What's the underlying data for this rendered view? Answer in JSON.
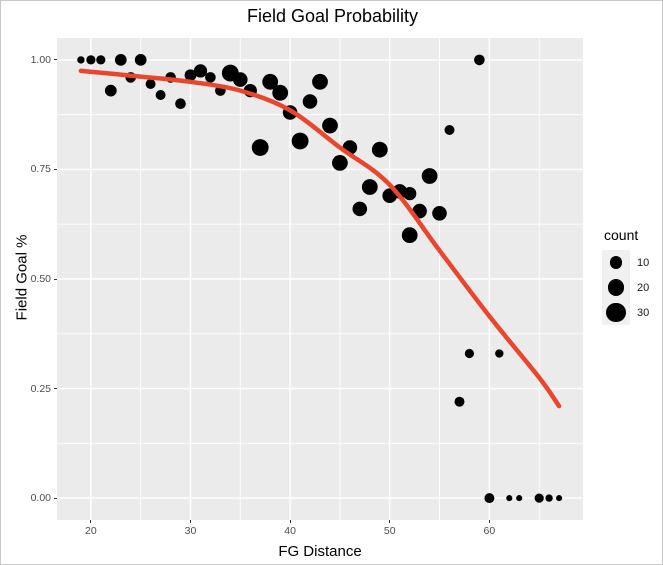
{
  "title": "Field Goal Probability",
  "axes": {
    "x_label": "FG Distance",
    "y_label": "Field Goal %"
  },
  "legend": {
    "title": "count",
    "entries": [
      {
        "label": "10",
        "count": 10
      },
      {
        "label": "20",
        "count": 20
      },
      {
        "label": "30",
        "count": 30
      }
    ]
  },
  "colors": {
    "panel_bg": "#EBEBEB",
    "gridline": "#FFFFFF",
    "curve": "#E8462D",
    "point": "#000000",
    "tick_label": "#4D4D4D",
    "legend_key_bg": "#F0F0F0"
  },
  "chart_data": {
    "type": "scatter",
    "title": "Field Goal Probability",
    "xlabel": "FG Distance",
    "ylabel": "Field Goal %",
    "xlim": [
      16.6,
      69.4
    ],
    "ylim": [
      -0.05,
      1.05
    ],
    "x_major_ticks": [
      {
        "value": 20,
        "label": "20"
      },
      {
        "value": 30,
        "label": "30"
      },
      {
        "value": 40,
        "label": "40"
      },
      {
        "value": 50,
        "label": "50"
      },
      {
        "value": 60,
        "label": "60"
      }
    ],
    "y_major_ticks": [
      {
        "value": 1.0,
        "label": "1.00"
      },
      {
        "value": 0.75,
        "label": "0.75"
      },
      {
        "value": 0.5,
        "label": "0.50"
      },
      {
        "value": 0.25,
        "label": "0.25"
      },
      {
        "value": 0.0,
        "label": "0.00"
      }
    ],
    "x_minor_gridlines": [
      25,
      35,
      45,
      55,
      65
    ],
    "y_minor_gridlines": [
      0.125,
      0.375,
      0.625,
      0.875
    ],
    "grid": true,
    "legend_position": "right",
    "size_legend_counts": [
      10,
      20,
      30
    ],
    "series": [
      {
        "name": "field-goal-attempts",
        "type": "scatter",
        "size_by": "count",
        "points": [
          {
            "x": 19,
            "y": 1.0,
            "count": 2
          },
          {
            "x": 20,
            "y": 1.0,
            "count": 4
          },
          {
            "x": 21,
            "y": 1.0,
            "count": 4
          },
          {
            "x": 23,
            "y": 1.0,
            "count": 8
          },
          {
            "x": 25,
            "y": 1.0,
            "count": 8
          },
          {
            "x": 22,
            "y": 0.93,
            "count": 8
          },
          {
            "x": 24,
            "y": 0.96,
            "count": 6
          },
          {
            "x": 26,
            "y": 0.945,
            "count": 5
          },
          {
            "x": 27,
            "y": 0.92,
            "count": 5
          },
          {
            "x": 28,
            "y": 0.96,
            "count": 6
          },
          {
            "x": 29,
            "y": 0.9,
            "count": 6
          },
          {
            "x": 30,
            "y": 0.965,
            "count": 8
          },
          {
            "x": 31,
            "y": 0.975,
            "count": 11
          },
          {
            "x": 32,
            "y": 0.96,
            "count": 6
          },
          {
            "x": 33,
            "y": 0.93,
            "count": 6
          },
          {
            "x": 34,
            "y": 0.97,
            "count": 20
          },
          {
            "x": 35,
            "y": 0.955,
            "count": 14
          },
          {
            "x": 36,
            "y": 0.93,
            "count": 11
          },
          {
            "x": 37,
            "y": 0.8,
            "count": 20
          },
          {
            "x": 38,
            "y": 0.95,
            "count": 17
          },
          {
            "x": 39,
            "y": 0.925,
            "count": 17
          },
          {
            "x": 40,
            "y": 0.88,
            "count": 14
          },
          {
            "x": 41,
            "y": 0.815,
            "count": 20
          },
          {
            "x": 42,
            "y": 0.905,
            "count": 14
          },
          {
            "x": 43,
            "y": 0.95,
            "count": 17
          },
          {
            "x": 44,
            "y": 0.85,
            "count": 17
          },
          {
            "x": 45,
            "y": 0.765,
            "count": 17
          },
          {
            "x": 46,
            "y": 0.8,
            "count": 14
          },
          {
            "x": 47,
            "y": 0.66,
            "count": 14
          },
          {
            "x": 48,
            "y": 0.71,
            "count": 17
          },
          {
            "x": 49,
            "y": 0.795,
            "count": 17
          },
          {
            "x": 50,
            "y": 0.69,
            "count": 14
          },
          {
            "x": 51,
            "y": 0.7,
            "count": 14
          },
          {
            "x": 52,
            "y": 0.695,
            "count": 11
          },
          {
            "x": 52,
            "y": 0.6,
            "count": 17
          },
          {
            "x": 53,
            "y": 0.655,
            "count": 14
          },
          {
            "x": 54,
            "y": 0.735,
            "count": 17
          },
          {
            "x": 55,
            "y": 0.65,
            "count": 14
          },
          {
            "x": 56,
            "y": 0.84,
            "count": 5
          },
          {
            "x": 59,
            "y": 1.0,
            "count": 6
          },
          {
            "x": 57,
            "y": 0.22,
            "count": 5
          },
          {
            "x": 58,
            "y": 0.33,
            "count": 4
          },
          {
            "x": 61,
            "y": 0.33,
            "count": 3
          },
          {
            "x": 60,
            "y": 0.0,
            "count": 5
          },
          {
            "x": 62,
            "y": 0.0,
            "count": 1
          },
          {
            "x": 63,
            "y": 0.0,
            "count": 1
          },
          {
            "x": 65,
            "y": 0.0,
            "count": 4
          },
          {
            "x": 66,
            "y": 0.0,
            "count": 2
          },
          {
            "x": 67,
            "y": 0.0,
            "count": 1
          }
        ]
      },
      {
        "name": "smooth-fit-line",
        "type": "line",
        "points": [
          {
            "x": 19,
            "y": 0.975
          },
          {
            "x": 25,
            "y": 0.962
          },
          {
            "x": 30,
            "y": 0.95
          },
          {
            "x": 35,
            "y": 0.93
          },
          {
            "x": 40,
            "y": 0.885
          },
          {
            "x": 45,
            "y": 0.8
          },
          {
            "x": 50,
            "y": 0.715
          },
          {
            "x": 55,
            "y": 0.565
          },
          {
            "x": 60,
            "y": 0.415
          },
          {
            "x": 65,
            "y": 0.275
          },
          {
            "x": 67,
            "y": 0.21
          }
        ]
      }
    ]
  }
}
